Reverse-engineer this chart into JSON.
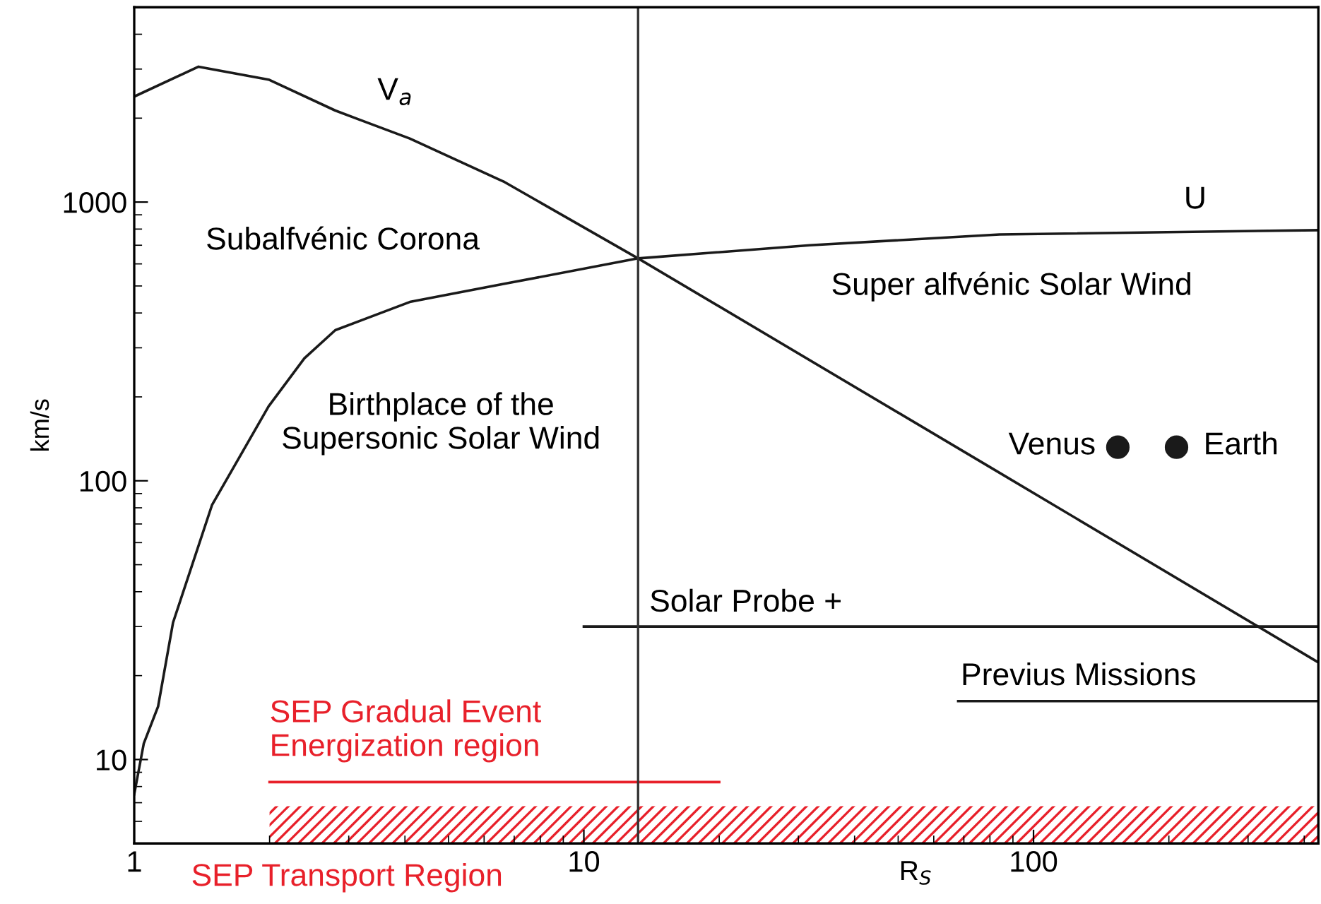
{
  "chart_data": {
    "type": "line",
    "xlabel": "R$_{S}$",
    "ylabel": "km/s",
    "log": "xy",
    "xlim": [
      1,
      430
    ],
    "ylim": [
      5,
      5000
    ],
    "xticks": [
      1,
      10,
      100
    ],
    "yticks": [
      10,
      100,
      1000
    ],
    "series": [
      {
        "type": "line",
        "color": "#1a1a1a",
        "x": [
          1,
          1.39,
          1.99,
          2.8,
          4.1,
          6.66,
          13.2,
          80,
          430
        ],
        "values": [
          2390,
          3060,
          2750,
          2130,
          1690,
          1180,
          628,
          112,
          22.3
        ]
      },
      {
        "type": "line",
        "color": "#1a1a1a",
        "x": [
          1,
          1.05,
          1.13,
          1.22,
          1.49,
          1.99,
          2.39,
          2.8,
          4.1,
          6.66,
          13.2,
          31.8,
          84,
          430
        ],
        "values": [
          7.5,
          11.4,
          15.5,
          31,
          82,
          185,
          275,
          347,
          438,
          509,
          628,
          700,
          765,
          793
        ]
      },
      {
        "type": "line",
        "color": "#1a1a1a",
        "x": [
          10,
          430
        ],
        "values": [
          30,
          30
        ]
      },
      {
        "type": "line",
        "color": "#1a1a1a",
        "x": [
          68,
          430
        ],
        "values": [
          16.2,
          16.2
        ]
      },
      {
        "type": "line",
        "name": "SEP Gradual Event\nEnergization region",
        "color": "#e8202a",
        "x": [
          2,
          20
        ],
        "values": [
          8.3,
          8.3
        ]
      },
      {
        "type": "area",
        "name": "SEP Transport Region",
        "color": "#e8202a",
        "x": [
          2,
          430
        ],
        "values": [
          6.8,
          6.8
        ]
      },
      {
        "type": "scatter",
        "color": "#1a1a1a",
        "x": [
          154,
          208
        ],
        "values": [
          132,
          132
        ]
      }
    ],
    "ref_lines": [
      {
        "axis": "x",
        "value": 13.2,
        "color": "#333333"
      }
    ],
    "annotations": [
      "V$_{a}$",
      "U",
      "Subalfvénic Corona",
      "Birthplace of the\nSupersonic Solar Wind",
      "Super alfvénic Solar Wind",
      "Venus",
      "Earth",
      "Solar Probe +",
      "Previus Missions"
    ]
  }
}
